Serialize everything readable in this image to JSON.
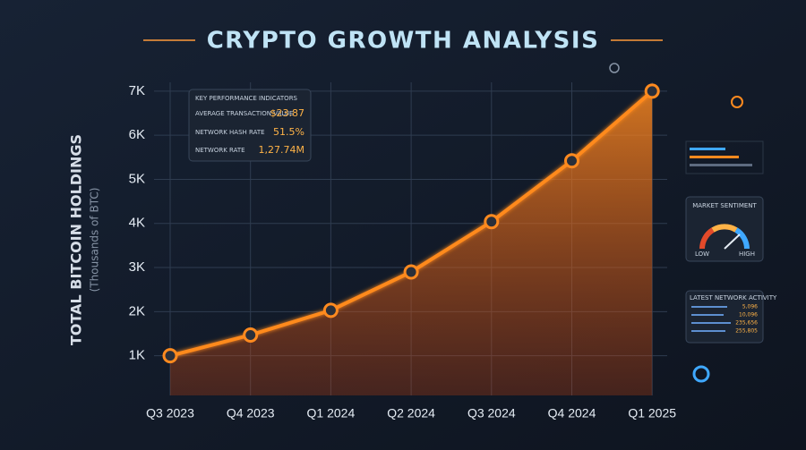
{
  "chart_data": {
    "type": "line",
    "title": "CRYPTO GROWTH ANALYSIS",
    "y_label": "TOTAL BITCOIN HOLDINGS",
    "y_sublabel": "(Thousands of BTC)",
    "categories": [
      "Q3 2023",
      "Q4 2023",
      "Q1 2024",
      "Q2 2024",
      "Q3 2024",
      "Q4 2024",
      "Q1 2025"
    ],
    "values": [
      1000,
      1470,
      2030,
      2900,
      4040,
      5420,
      7000
    ],
    "color": "#ff8a1f",
    "ylim": [
      100,
      7200
    ],
    "yticks": [
      {
        "value": 1000,
        "label": "1K"
      },
      {
        "value": 2000,
        "label": "2K"
      },
      {
        "value": 3000,
        "label": "3K"
      },
      {
        "value": 4000,
        "label": "4K"
      },
      {
        "value": 5000,
        "label": "5K"
      },
      {
        "value": 6000,
        "label": "6K"
      },
      {
        "value": 7000,
        "label": "7K"
      }
    ],
    "grid": true
  },
  "kpi_panel": {
    "title": "KEY PERFORMANCE INDICATORS",
    "rows": [
      [
        "AVERAGE TRANSACTION VALUE",
        "$23.87"
      ],
      [
        "NETWORK HASH RATE",
        "51.5%"
      ],
      [
        "NETWORK RATE",
        "1,27.74M"
      ]
    ]
  },
  "sentiment_panel": {
    "title": "MARKET SENTIMENT",
    "low": "LOW",
    "high": "HIGH"
  },
  "activity_panel": {
    "title": "LATEST NETWORK ACTIVITY",
    "values": [
      "5,096",
      "10,096",
      "235,656",
      "255,805"
    ]
  }
}
